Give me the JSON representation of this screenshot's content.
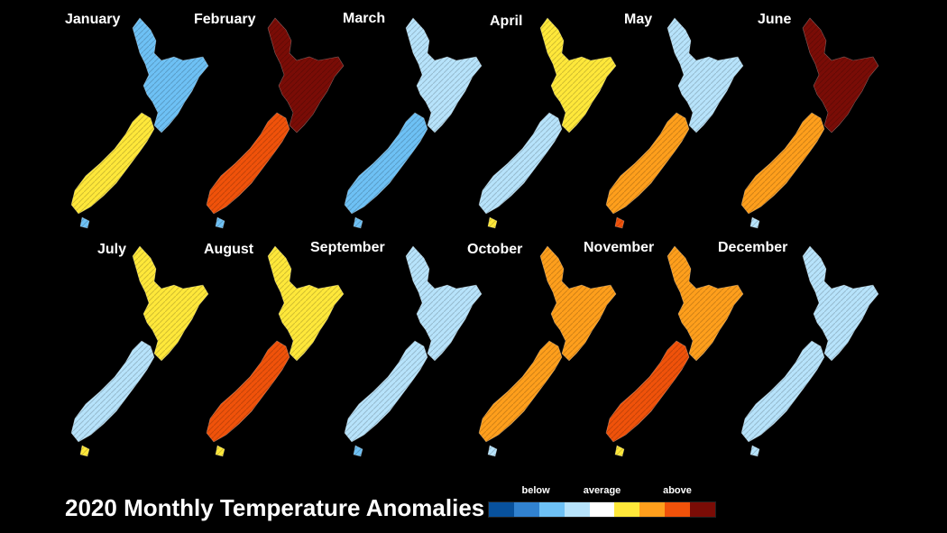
{
  "title": "2020 Monthly Temperature Anomalies",
  "legend": {
    "labels": {
      "below": "below",
      "average": "average",
      "above": "above"
    },
    "colors": [
      "#08519c",
      "#3182d0",
      "#6ec1f5",
      "#b7e3fb",
      "#ffffff",
      "#ffe83a",
      "#ff9f1c",
      "#f0520a",
      "#7a0c06"
    ]
  },
  "months": [
    {
      "name": "January",
      "north": 2,
      "south": 5,
      "tail": 2
    },
    {
      "name": "February",
      "north": 8,
      "south": 7,
      "tail": 2
    },
    {
      "name": "March",
      "north": 3,
      "south": 2,
      "tail": 2
    },
    {
      "name": "April",
      "north": 5,
      "south": 3,
      "tail": 5
    },
    {
      "name": "May",
      "north": 3,
      "south": 6,
      "tail": 7
    },
    {
      "name": "June",
      "north": 8,
      "south": 6,
      "tail": 3
    },
    {
      "name": "July",
      "north": 5,
      "south": 3,
      "tail": 5
    },
    {
      "name": "August",
      "north": 5,
      "south": 7,
      "tail": 5
    },
    {
      "name": "September",
      "north": 3,
      "south": 3,
      "tail": 2
    },
    {
      "name": "October",
      "north": 6,
      "south": 6,
      "tail": 3
    },
    {
      "name": "November",
      "north": 6,
      "south": 7,
      "tail": 5
    },
    {
      "name": "December",
      "north": 3,
      "south": 3,
      "tail": 3
    }
  ]
}
